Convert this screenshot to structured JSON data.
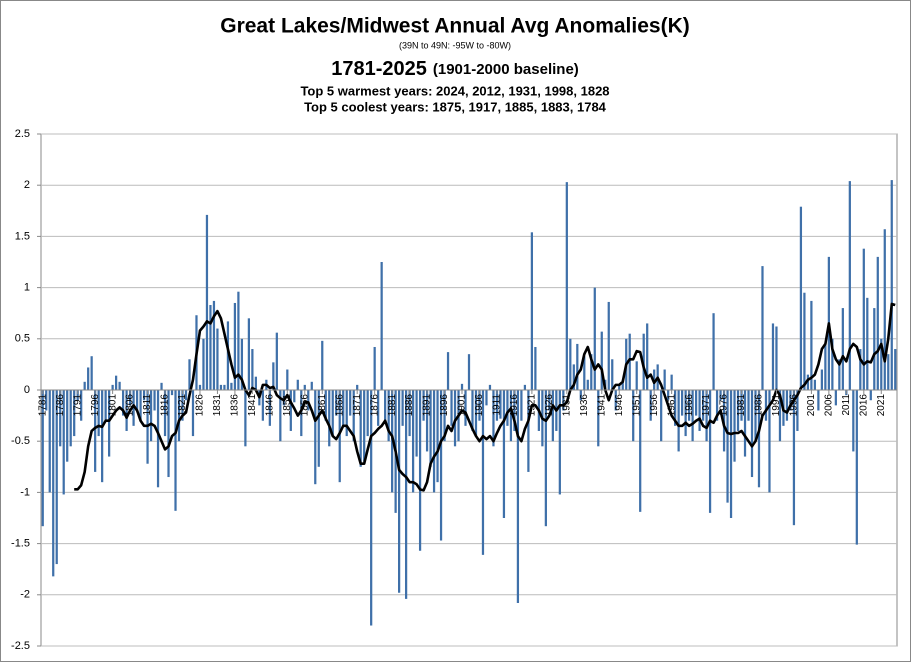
{
  "chart_data": {
    "type": "bar",
    "title": "Great Lakes/Midwest Annual Avg Anomalies(K)",
    "subtitle": "(39N to 49N: -95W to -80W)",
    "period": "1781-2025",
    "baseline": "(1901-2000 baseline)",
    "warmest": "Top 5 warmest years: 2024, 2012, 1931, 1998, 1828",
    "coolest": "Top 5 coolest years: 1875, 1917, 1885, 1883, 1784",
    "x": [
      1781,
      1782,
      1783,
      1784,
      1785,
      1786,
      1787,
      1788,
      1789,
      1790,
      1791,
      1792,
      1793,
      1794,
      1795,
      1796,
      1797,
      1798,
      1799,
      1800,
      1801,
      1802,
      1803,
      1804,
      1805,
      1806,
      1807,
      1808,
      1809,
      1810,
      1811,
      1812,
      1813,
      1814,
      1815,
      1816,
      1817,
      1818,
      1819,
      1820,
      1821,
      1822,
      1823,
      1824,
      1825,
      1826,
      1827,
      1828,
      1829,
      1830,
      1831,
      1832,
      1833,
      1834,
      1835,
      1836,
      1837,
      1838,
      1839,
      1840,
      1841,
      1842,
      1843,
      1844,
      1845,
      1846,
      1847,
      1848,
      1849,
      1850,
      1851,
      1852,
      1853,
      1854,
      1855,
      1856,
      1857,
      1858,
      1859,
      1860,
      1861,
      1862,
      1863,
      1864,
      1865,
      1866,
      1867,
      1868,
      1869,
      1870,
      1871,
      1872,
      1873,
      1874,
      1875,
      1876,
      1877,
      1878,
      1879,
      1880,
      1881,
      1882,
      1883,
      1884,
      1885,
      1886,
      1887,
      1888,
      1889,
      1890,
      1891,
      1892,
      1893,
      1894,
      1895,
      1896,
      1897,
      1898,
      1899,
      1900,
      1901,
      1902,
      1903,
      1904,
      1905,
      1906,
      1907,
      1908,
      1909,
      1910,
      1911,
      1912,
      1913,
      1914,
      1915,
      1916,
      1917,
      1918,
      1919,
      1920,
      1921,
      1922,
      1923,
      1924,
      1925,
      1926,
      1927,
      1928,
      1929,
      1930,
      1931,
      1932,
      1933,
      1934,
      1935,
      1936,
      1937,
      1938,
      1939,
      1940,
      1941,
      1942,
      1943,
      1944,
      1945,
      1946,
      1947,
      1948,
      1949,
      1950,
      1951,
      1952,
      1953,
      1954,
      1955,
      1956,
      1957,
      1958,
      1959,
      1960,
      1961,
      1962,
      1963,
      1964,
      1965,
      1966,
      1967,
      1968,
      1969,
      1970,
      1971,
      1972,
      1973,
      1974,
      1975,
      1976,
      1977,
      1978,
      1979,
      1980,
      1981,
      1982,
      1983,
      1984,
      1985,
      1986,
      1987,
      1988,
      1989,
      1990,
      1991,
      1992,
      1993,
      1994,
      1995,
      1996,
      1997,
      1998,
      1999,
      2000,
      2001,
      2002,
      2003,
      2004,
      2005,
      2006,
      2007,
      2008,
      2009,
      2010,
      2011,
      2012,
      2013,
      2014,
      2015,
      2016,
      2017,
      2018,
      2019,
      2020,
      2021,
      2022,
      2023,
      2024,
      2025
    ],
    "series": [
      {
        "type": "bar",
        "color": "#3f70a9",
        "values": [
          -1.33,
          -0.2,
          -1.0,
          -1.82,
          -1.7,
          -0.55,
          -1.02,
          -0.7,
          -0.55,
          -0.45,
          -0.1,
          -0.3,
          0.08,
          0.22,
          0.33,
          -0.8,
          -0.45,
          -0.9,
          -0.3,
          -0.65,
          0.05,
          0.14,
          0.08,
          -0.25,
          -0.4,
          -0.15,
          -0.35,
          -0.2,
          -0.3,
          -0.1,
          -0.72,
          -0.5,
          -0.2,
          -0.95,
          0.07,
          -0.45,
          -0.85,
          -0.05,
          -1.18,
          -0.5,
          -0.3,
          -0.1,
          0.3,
          -0.45,
          0.73,
          0.05,
          0.5,
          1.71,
          0.83,
          0.87,
          0.6,
          0.05,
          0.05,
          0.67,
          0.07,
          0.85,
          0.96,
          0.5,
          -0.55,
          0.7,
          0.4,
          0.13,
          -0.15,
          -0.3,
          0.1,
          -0.35,
          0.27,
          0.56,
          -0.5,
          -0.15,
          0.2,
          -0.4,
          -0.12,
          0.1,
          -0.45,
          0.05,
          -0.2,
          0.08,
          -0.92,
          -0.75,
          0.48,
          -0.3,
          -0.55,
          -0.45,
          -0.25,
          -0.9,
          -0.35,
          -0.45,
          -0.25,
          -0.5,
          0.05,
          -0.75,
          -0.7,
          -0.45,
          -2.3,
          0.42,
          -0.35,
          1.25,
          -0.3,
          -0.5,
          -1.0,
          -1.2,
          -1.98,
          -0.35,
          -2.04,
          -0.45,
          -1.0,
          -0.65,
          -1.57,
          -0.3,
          -0.6,
          -0.75,
          -1.0,
          -0.9,
          -1.47,
          -0.5,
          0.37,
          -0.35,
          -0.55,
          -0.5,
          0.06,
          -0.35,
          0.35,
          -0.4,
          -0.45,
          -0.3,
          -1.61,
          -0.15,
          0.05,
          -0.55,
          -0.3,
          -0.28,
          -1.25,
          -0.35,
          -0.5,
          -0.4,
          -2.08,
          -0.3,
          0.05,
          -0.8,
          1.54,
          0.42,
          -0.4,
          -0.55,
          -1.33,
          -0.2,
          -0.5,
          -0.4,
          -1.02,
          -0.2,
          2.03,
          0.5,
          0.25,
          0.45,
          -0.1,
          0.33,
          0.1,
          0.35,
          1.0,
          -0.55,
          0.57,
          0.1,
          0.86,
          0.3,
          -0.2,
          0.05,
          0.1,
          0.5,
          0.55,
          -0.5,
          0.28,
          -1.19,
          0.55,
          0.65,
          -0.3,
          0.2,
          0.25,
          -0.5,
          0.2,
          -0.1,
          0.15,
          -0.35,
          -0.6,
          -0.25,
          -0.45,
          -0.3,
          -0.5,
          -0.25,
          -0.4,
          -0.3,
          -0.5,
          -1.2,
          0.75,
          -0.3,
          -0.1,
          -0.6,
          -1.1,
          -1.25,
          -0.7,
          -0.4,
          -0.3,
          -0.65,
          -0.3,
          -0.85,
          -0.5,
          -0.95,
          1.21,
          -0.3,
          -1.0,
          0.65,
          0.62,
          -0.5,
          -0.35,
          -0.3,
          -0.2,
          -1.32,
          -0.4,
          1.79,
          0.95,
          0.15,
          0.87,
          0.1,
          -0.2,
          0.2,
          0.45,
          1.3,
          0.5,
          -0.15,
          0.3,
          0.8,
          -0.05,
          2.04,
          -0.6,
          -1.51,
          0.4,
          1.38,
          0.9,
          -0.1,
          0.8,
          1.3,
          0.5,
          1.57,
          0.35,
          2.05,
          0.4
        ]
      },
      {
        "type": "line",
        "color": "#000000",
        "values": [
          null,
          null,
          null,
          null,
          null,
          null,
          null,
          null,
          null,
          -0.97,
          -0.97,
          -0.93,
          -0.8,
          -0.55,
          -0.4,
          -0.37,
          -0.35,
          -0.36,
          -0.3,
          -0.3,
          -0.25,
          -0.2,
          -0.17,
          -0.2,
          -0.27,
          -0.2,
          -0.15,
          -0.2,
          -0.3,
          -0.35,
          -0.35,
          -0.33,
          -0.35,
          -0.42,
          -0.5,
          -0.58,
          -0.55,
          -0.45,
          -0.42,
          -0.3,
          -0.25,
          -0.22,
          -0.05,
          0.1,
          0.35,
          0.58,
          0.62,
          0.67,
          0.65,
          0.72,
          0.77,
          0.7,
          0.55,
          0.4,
          0.25,
          0.12,
          0.15,
          0.1,
          0.0,
          -0.05,
          0.02,
          0.0,
          -0.07,
          0.05,
          0.05,
          0.02,
          0.03,
          -0.05,
          -0.08,
          -0.1,
          -0.05,
          -0.12,
          -0.18,
          -0.25,
          -0.2,
          -0.12,
          -0.12,
          -0.2,
          -0.3,
          -0.25,
          -0.2,
          -0.28,
          -0.35,
          -0.45,
          -0.48,
          -0.42,
          -0.35,
          -0.35,
          -0.4,
          -0.45,
          -0.6,
          -0.72,
          -0.72,
          -0.58,
          -0.45,
          -0.42,
          -0.38,
          -0.35,
          -0.3,
          -0.4,
          -0.45,
          -0.6,
          -0.78,
          -0.82,
          -0.85,
          -0.9,
          -0.9,
          -0.92,
          -0.97,
          -0.98,
          -0.9,
          -0.72,
          -0.65,
          -0.6,
          -0.5,
          -0.45,
          -0.35,
          -0.4,
          -0.3,
          -0.25,
          -0.2,
          -0.22,
          -0.3,
          -0.38,
          -0.45,
          -0.5,
          -0.45,
          -0.48,
          -0.45,
          -0.5,
          -0.42,
          -0.35,
          -0.3,
          -0.22,
          -0.18,
          -0.3,
          -0.45,
          -0.5,
          -0.38,
          -0.3,
          -0.15,
          -0.15,
          -0.2,
          -0.28,
          -0.3,
          -0.25,
          -0.15,
          -0.2,
          -0.15,
          -0.15,
          -0.12,
          0.0,
          0.05,
          0.15,
          0.2,
          0.35,
          0.42,
          0.3,
          0.2,
          0.25,
          0.2,
          0.0,
          -0.1,
          0.0,
          0.05,
          0.05,
          0.08,
          0.25,
          0.3,
          0.3,
          0.38,
          0.37,
          0.22,
          0.12,
          0.15,
          0.07,
          0.12,
          0.05,
          -0.05,
          -0.15,
          -0.25,
          -0.3,
          -0.35,
          -0.35,
          -0.32,
          -0.35,
          -0.33,
          -0.3,
          -0.28,
          -0.35,
          -0.37,
          -0.3,
          -0.32,
          -0.25,
          -0.2,
          -0.35,
          -0.42,
          -0.43,
          -0.42,
          -0.42,
          -0.4,
          -0.45,
          -0.5,
          -0.55,
          -0.5,
          -0.4,
          -0.25,
          -0.2,
          -0.15,
          -0.1,
          0.0,
          -0.05,
          -0.2,
          -0.22,
          -0.15,
          -0.1,
          -0.05,
          0.02,
          0.05,
          0.1,
          0.12,
          0.15,
          0.25,
          0.4,
          0.45,
          0.65,
          0.4,
          0.3,
          0.25,
          0.33,
          0.28,
          0.4,
          0.45,
          0.42,
          0.3,
          0.25,
          0.28,
          0.27,
          0.35,
          0.38,
          0.45,
          0.28,
          0.5,
          0.84,
          0.83
        ]
      }
    ],
    "xlim": [
      1780.5,
      2025.5
    ],
    "xticks": [
      1781,
      1786,
      1791,
      1796,
      1801,
      1806,
      1811,
      1816,
      1821,
      1826,
      1831,
      1836,
      1841,
      1846,
      1851,
      1856,
      1861,
      1866,
      1871,
      1876,
      1881,
      1886,
      1891,
      1896,
      1901,
      1906,
      1911,
      1916,
      1921,
      1926,
      1931,
      1936,
      1941,
      1946,
      1951,
      1956,
      1961,
      1966,
      1971,
      1976,
      1981,
      1986,
      1991,
      1996,
      2001,
      2006,
      2011,
      2016,
      2021
    ],
    "ylim": [
      -2.5,
      2.5
    ],
    "yticks": [
      2.5,
      2,
      1.5,
      1,
      0.5,
      0,
      -0.5,
      -1,
      -1.5,
      -2,
      -2.5
    ],
    "grid": true
  }
}
